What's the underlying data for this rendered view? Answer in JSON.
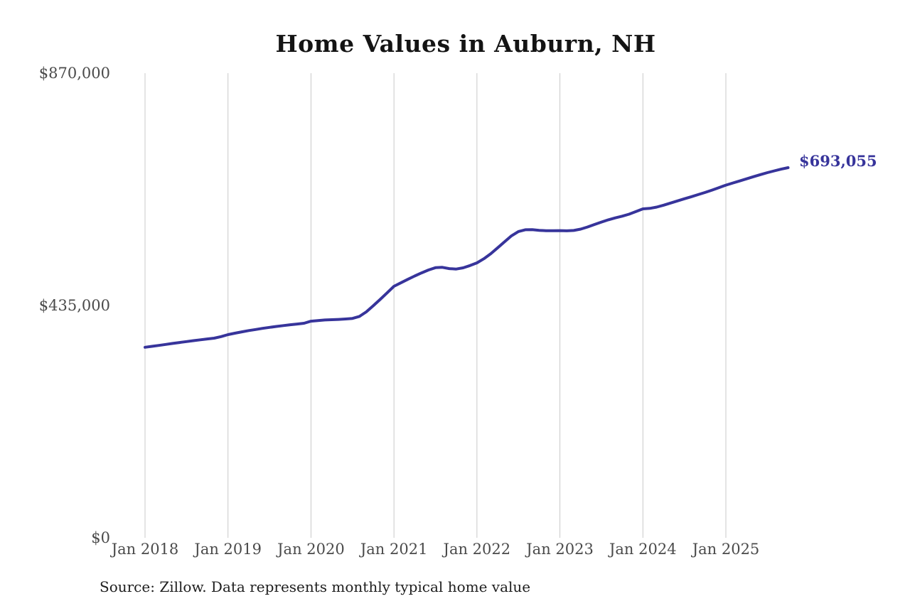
{
  "chart": {
    "title": "Home Values in Auburn, NH",
    "end_label": "$693,055",
    "source_note": "Source: Zillow. Data represents monthly typical home value"
  },
  "colors": {
    "line": "#37349b",
    "end_label": "#37349b",
    "gridline": "#c9c9c9",
    "axis_text": "#4a4a4a",
    "title_text": "#141414",
    "background": "#ffffff"
  },
  "chart_data": {
    "type": "line",
    "title": "Home Values in Auburn, NH",
    "xlabel": "",
    "ylabel": "",
    "ylim": [
      0,
      870000
    ],
    "grid": "vertical-only",
    "legend": "none",
    "line_color": "#37349b",
    "end_annotation": "$693,055",
    "final_value": 693055,
    "y_tick_labels": [
      "$870,000",
      "$435,000",
      "$0"
    ],
    "y_tick_values": [
      870000,
      435000,
      0
    ],
    "x_tick_labels": [
      "Jan 2018",
      "Jan 2019",
      "Jan 2020",
      "Jan 2021",
      "Jan 2022",
      "Jan 2023",
      "Jan 2024",
      "Jan 2025"
    ],
    "x_tick_month_indices": [
      0,
      12,
      24,
      36,
      48,
      60,
      72,
      84
    ],
    "x": [
      "2018-01",
      "2018-02",
      "2018-03",
      "2018-04",
      "2018-05",
      "2018-06",
      "2018-07",
      "2018-08",
      "2018-09",
      "2018-10",
      "2018-11",
      "2018-12",
      "2019-01",
      "2019-02",
      "2019-03",
      "2019-04",
      "2019-05",
      "2019-06",
      "2019-07",
      "2019-08",
      "2019-09",
      "2019-10",
      "2019-11",
      "2019-12",
      "2020-01",
      "2020-02",
      "2020-03",
      "2020-04",
      "2020-05",
      "2020-06",
      "2020-07",
      "2020-08",
      "2020-09",
      "2020-10",
      "2020-11",
      "2020-12",
      "2021-01",
      "2021-02",
      "2021-03",
      "2021-04",
      "2021-05",
      "2021-06",
      "2021-07",
      "2021-08",
      "2021-09",
      "2021-10",
      "2021-11",
      "2021-12",
      "2022-01",
      "2022-02",
      "2022-03",
      "2022-04",
      "2022-05",
      "2022-06",
      "2022-07",
      "2022-08",
      "2022-09",
      "2022-10",
      "2022-11",
      "2022-12",
      "2023-01",
      "2023-02",
      "2023-03",
      "2023-04",
      "2023-05",
      "2023-06",
      "2023-07",
      "2023-08",
      "2023-09",
      "2023-10",
      "2023-11",
      "2023-12",
      "2024-01",
      "2024-02",
      "2024-03",
      "2024-04",
      "2024-05",
      "2024-06",
      "2024-07",
      "2024-08",
      "2024-09",
      "2024-10",
      "2024-11",
      "2024-12",
      "2025-01",
      "2025-02",
      "2025-03",
      "2025-04",
      "2025-05",
      "2025-06",
      "2025-07",
      "2025-08",
      "2025-09",
      "2025-10"
    ],
    "y": [
      356800,
      358500,
      360300,
      362100,
      363900,
      365700,
      367400,
      369100,
      370800,
      372400,
      373800,
      376700,
      380500,
      383100,
      385600,
      388000,
      390100,
      392100,
      394000,
      395800,
      397400,
      398900,
      400300,
      401700,
      405600,
      406800,
      407800,
      408400,
      408900,
      409700,
      410800,
      414500,
      423000,
      434500,
      446300,
      458500,
      470900,
      477500,
      484000,
      490200,
      496000,
      501500,
      505800,
      506500,
      504000,
      503200,
      505500,
      509800,
      514800,
      522500,
      532000,
      543000,
      554500,
      565500,
      573500,
      576800,
      577000,
      575800,
      575000,
      574900,
      575200,
      574800,
      575500,
      578000,
      582000,
      586600,
      591200,
      595400,
      599000,
      602200,
      606000,
      610800,
      615900,
      616800,
      619200,
      622800,
      626800,
      630800,
      634800,
      638700,
      642600,
      646600,
      651000,
      655700,
      660400,
      664300,
      668200,
      672200,
      676200,
      680100,
      683700,
      687100,
      690300,
      693055
    ]
  }
}
